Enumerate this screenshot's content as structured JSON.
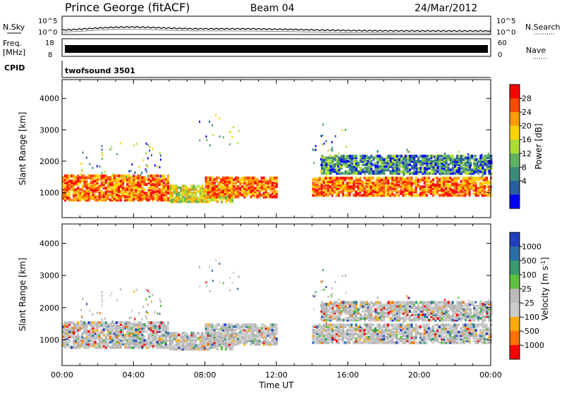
{
  "header": {
    "station": "Prince George (fitACF)",
    "beam": "Beam 04",
    "date": "24/Mar/2012"
  },
  "noise_panel": {
    "left_label": "N.Sky",
    "right_label": "N.Search",
    "y_top": "10^5",
    "y_bottom": "10^0"
  },
  "freq_panel": {
    "left_label_1": "Freq.",
    "left_label_2": "[MHz]",
    "y_top": "18",
    "y_bottom": "8",
    "right_top": "60",
    "right_bottom": "0",
    "right_label": "Nave"
  },
  "cpid_panel": {
    "left_label": "CPID",
    "value": "twofsound 3501"
  },
  "chart_data": [
    {
      "type": "heatmap",
      "name": "power",
      "ylabel": "Slant Range [km]",
      "ylim": [
        200,
        4600
      ],
      "yticks": [
        "1000",
        "2000",
        "3000",
        "4000"
      ],
      "xlim": [
        0,
        24
      ],
      "colorbar": {
        "label": "Power [dB]",
        "ticks": [
          "28",
          "24",
          "20",
          "16",
          "12",
          "8",
          "4"
        ],
        "colors": [
          "#ff0000",
          "#ff4a00",
          "#ff9a00",
          "#ffd400",
          "#aadd33",
          "#5fb060",
          "#3a8c7a",
          "#2a5fa0",
          "#0000ff"
        ]
      },
      "echo_bands": [
        {
          "t0": 0.0,
          "t1": 6.0,
          "r0": 750,
          "r1": 1550,
          "level": "high"
        },
        {
          "t0": 6.0,
          "t1": 9.5,
          "r0": 700,
          "r1": 1200,
          "level": "mid"
        },
        {
          "t0": 8.0,
          "t1": 12.0,
          "r0": 850,
          "r1": 1500,
          "level": "high"
        },
        {
          "t0": 14.0,
          "t1": 24.0,
          "r0": 900,
          "r1": 1500,
          "level": "high"
        },
        {
          "t0": 14.5,
          "t1": 24.0,
          "r0": 1600,
          "r1": 2200,
          "level": "low"
        }
      ]
    },
    {
      "type": "heatmap",
      "name": "velocity",
      "ylabel": "Slant Range [km]",
      "xlabel": "Time UT",
      "ylim": [
        200,
        4600
      ],
      "yticks": [
        "1000",
        "2000",
        "3000",
        "4000"
      ],
      "xlim": [
        0,
        24
      ],
      "xticks": [
        "00:00",
        "04:00",
        "08:00",
        "12:00",
        "16:00",
        "20:00",
        "00:00"
      ],
      "colorbar": {
        "label": "Velocity [m s^-1]",
        "ticks": [
          "1000",
          "500",
          "100",
          "25",
          "-25",
          "-100",
          "-500",
          "-1000"
        ],
        "colors": [
          "#2040c0",
          "#2a70a8",
          "#3a9a70",
          "#60c040",
          "#bbbbbb",
          "#cccccc",
          "#ffaa00",
          "#ff7000",
          "#ff0000"
        ]
      }
    }
  ]
}
